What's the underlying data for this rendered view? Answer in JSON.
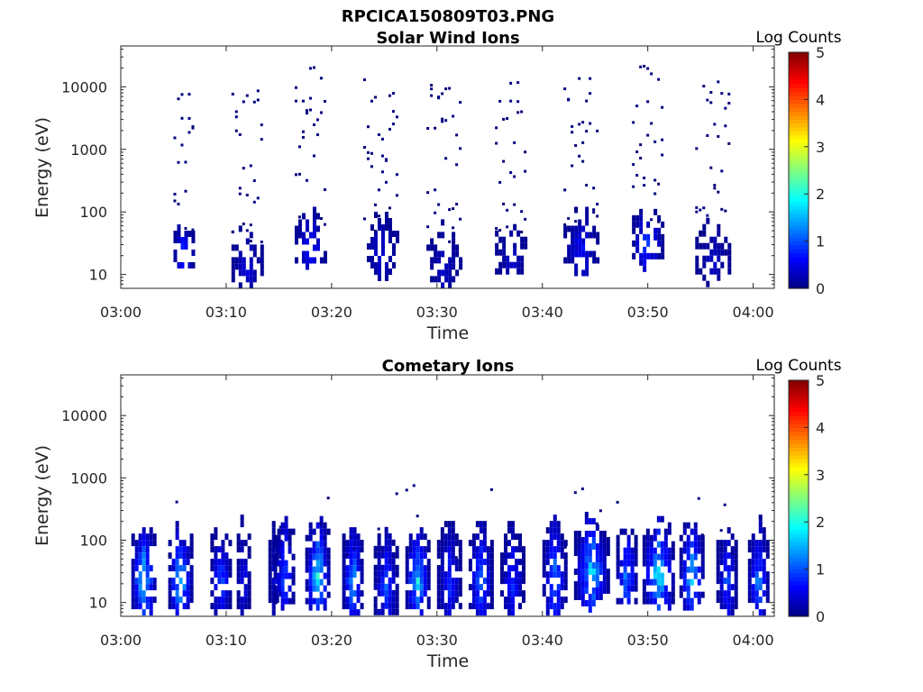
{
  "figure": {
    "title": "RPCICA150809T03.PNG"
  },
  "colorscale": [
    "#00007f",
    "#0000ff",
    "#007fff",
    "#00ffff",
    "#7fff7f",
    "#ffff00",
    "#ff7f00",
    "#ff0000",
    "#7f0000"
  ],
  "chart_data": [
    {
      "type": "heatmap",
      "title": "Solar Wind Ions",
      "xlabel": "Time",
      "ylabel": "Energy (eV)",
      "x_range": [
        "03:00",
        "04:02"
      ],
      "ylim": [
        6,
        45000
      ],
      "y_scale": "log",
      "x_tick_labels": [
        "03:00",
        "03:10",
        "03:20",
        "03:30",
        "03:40",
        "03:50",
        "04:00"
      ],
      "y_tick_labels": [
        "10",
        "100",
        "1000",
        "10000"
      ],
      "colorbar": {
        "label": "Log Counts",
        "range": [
          0,
          5
        ],
        "tick_labels": [
          "0",
          "1",
          "2",
          "3",
          "4",
          "5"
        ]
      },
      "bursts": [
        {
          "start_min": 5.0,
          "end_min": 7.0,
          "peak_energy_ev": 25,
          "peak_log_counts": 1.2
        },
        {
          "start_min": 10.5,
          "end_min": 13.5,
          "peak_energy_ev": 15,
          "peak_log_counts": 0.6
        },
        {
          "start_min": 16.5,
          "end_min": 19.5,
          "peak_energy_ev": 30,
          "peak_log_counts": 0.9
        },
        {
          "start_min": 23.0,
          "end_min": 26.5,
          "peak_energy_ev": 25,
          "peak_log_counts": 0.6
        },
        {
          "start_min": 29.0,
          "end_min": 32.5,
          "peak_energy_ev": 15,
          "peak_log_counts": 0.5
        },
        {
          "start_min": 35.5,
          "end_min": 38.5,
          "peak_energy_ev": 20,
          "peak_log_counts": 0.5
        },
        {
          "start_min": 42.0,
          "end_min": 45.5,
          "peak_energy_ev": 30,
          "peak_log_counts": 0.8
        },
        {
          "start_min": 48.5,
          "end_min": 51.5,
          "peak_energy_ev": 35,
          "peak_log_counts": 1.2
        },
        {
          "start_min": 54.5,
          "end_min": 58.0,
          "peak_energy_ev": 20,
          "peak_log_counts": 0.5
        }
      ]
    },
    {
      "type": "heatmap",
      "title": "Cometary Ions",
      "xlabel": "Time",
      "ylabel": "Energy (eV)",
      "x_range": [
        "03:00",
        "04:02"
      ],
      "ylim": [
        6,
        45000
      ],
      "y_scale": "log",
      "x_tick_labels": [
        "03:00",
        "03:10",
        "03:20",
        "03:30",
        "03:40",
        "03:50",
        "04:00"
      ],
      "y_tick_labels": [
        "10",
        "100",
        "1000",
        "10000"
      ],
      "colorbar": {
        "label": "Log Counts",
        "range": [
          0,
          5
        ],
        "tick_labels": [
          "0",
          "1",
          "2",
          "3",
          "4",
          "5"
        ]
      },
      "bursts": [
        {
          "start_min": 1.0,
          "end_min": 3.5,
          "peak_energy_ev": 25,
          "peak_log_counts": 2.2
        },
        {
          "start_min": 4.5,
          "end_min": 7.0,
          "peak_energy_ev": 25,
          "peak_log_counts": 2.1
        },
        {
          "start_min": 8.5,
          "end_min": 10.5,
          "peak_energy_ev": 25,
          "peak_log_counts": 1.3
        },
        {
          "start_min": 11.0,
          "end_min": 12.5,
          "peak_energy_ev": 25,
          "peak_log_counts": 0.8
        },
        {
          "start_min": 14.0,
          "end_min": 15.5,
          "peak_energy_ev": 25,
          "peak_log_counts": 0.6
        },
        {
          "start_min": 14.5,
          "end_min": 16.5,
          "peak_energy_ev": 30,
          "peak_log_counts": 1.3
        },
        {
          "start_min": 17.5,
          "end_min": 20.0,
          "peak_energy_ev": 30,
          "peak_log_counts": 2.2
        },
        {
          "start_min": 21.0,
          "end_min": 23.0,
          "peak_energy_ev": 25,
          "peak_log_counts": 1.8
        },
        {
          "start_min": 24.0,
          "end_min": 26.5,
          "peak_energy_ev": 20,
          "peak_log_counts": 1.2
        },
        {
          "start_min": 27.0,
          "end_min": 29.5,
          "peak_energy_ev": 25,
          "peak_log_counts": 2.1
        },
        {
          "start_min": 30.0,
          "end_min": 32.5,
          "peak_energy_ev": 25,
          "peak_log_counts": 1.0
        },
        {
          "start_min": 33.0,
          "end_min": 35.5,
          "peak_energy_ev": 25,
          "peak_log_counts": 1.5
        },
        {
          "start_min": 36.0,
          "end_min": 38.5,
          "peak_energy_ev": 25,
          "peak_log_counts": 1.0
        },
        {
          "start_min": 40.0,
          "end_min": 42.5,
          "peak_energy_ev": 25,
          "peak_log_counts": 1.6
        },
        {
          "start_min": 43.0,
          "end_min": 46.5,
          "peak_energy_ev": 35,
          "peak_log_counts": 2.0
        },
        {
          "start_min": 47.0,
          "end_min": 49.0,
          "peak_energy_ev": 30,
          "peak_log_counts": 1.6
        },
        {
          "start_min": 49.5,
          "end_min": 52.5,
          "peak_energy_ev": 30,
          "peak_log_counts": 2.3
        },
        {
          "start_min": 53.0,
          "end_min": 55.5,
          "peak_energy_ev": 30,
          "peak_log_counts": 2.0
        },
        {
          "start_min": 56.5,
          "end_min": 58.5,
          "peak_energy_ev": 25,
          "peak_log_counts": 1.2
        },
        {
          "start_min": 59.5,
          "end_min": 61.5,
          "peak_energy_ev": 25,
          "peak_log_counts": 1.5
        }
      ]
    }
  ]
}
